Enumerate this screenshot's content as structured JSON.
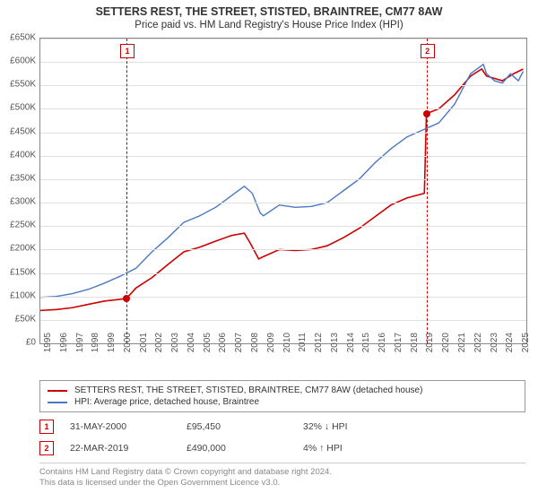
{
  "title": "SETTERS REST, THE STREET, STISTED, BRAINTREE, CM77 8AW",
  "subtitle": "Price paid vs. HM Land Registry's House Price Index (HPI)",
  "chart": {
    "type": "line",
    "background_color": "#ffffff",
    "grid_color": "#e0e0e0",
    "border_color": "#888888",
    "ylim": [
      0,
      650000
    ],
    "ytick_step": 50000,
    "yticks": [
      "£0",
      "£50K",
      "£100K",
      "£150K",
      "£200K",
      "£250K",
      "£300K",
      "£350K",
      "£400K",
      "£450K",
      "£500K",
      "£550K",
      "£600K",
      "£650K"
    ],
    "xlim": [
      1995,
      2025.5
    ],
    "xticks": [
      "1995",
      "1996",
      "1997",
      "1998",
      "1999",
      "2000",
      "2001",
      "2002",
      "2003",
      "2004",
      "2005",
      "2006",
      "2007",
      "2008",
      "2009",
      "2010",
      "2011",
      "2012",
      "2013",
      "2014",
      "2015",
      "2016",
      "2017",
      "2018",
      "2019",
      "2020",
      "2021",
      "2022",
      "2023",
      "2024",
      "2025"
    ],
    "series": [
      {
        "name": "property_price",
        "label": "SETTERS REST, THE STREET, STISTED, BRAINTREE, CM77 8AW (detached house)",
        "color": "#cc0000",
        "line_width": 1.6,
        "data": [
          [
            1995,
            70000
          ],
          [
            1996,
            72000
          ],
          [
            1997,
            76000
          ],
          [
            1998,
            83000
          ],
          [
            1999,
            90000
          ],
          [
            2000.4,
            95450
          ],
          [
            2001,
            118000
          ],
          [
            2002,
            140000
          ],
          [
            2003,
            168000
          ],
          [
            2004,
            195000
          ],
          [
            2005,
            205000
          ],
          [
            2006,
            218000
          ],
          [
            2007,
            230000
          ],
          [
            2007.8,
            235000
          ],
          [
            2008.2,
            212000
          ],
          [
            2008.7,
            180000
          ],
          [
            2009,
            185000
          ],
          [
            2010,
            200000
          ],
          [
            2011,
            198000
          ],
          [
            2012,
            200000
          ],
          [
            2013,
            208000
          ],
          [
            2014,
            225000
          ],
          [
            2015,
            245000
          ],
          [
            2016,
            270000
          ],
          [
            2017,
            295000
          ],
          [
            2018,
            310000
          ],
          [
            2019.1,
            320000
          ],
          [
            2019.23,
            490000
          ],
          [
            2020,
            500000
          ],
          [
            2021,
            530000
          ],
          [
            2022,
            570000
          ],
          [
            2022.7,
            585000
          ],
          [
            2023,
            570000
          ],
          [
            2024,
            560000
          ],
          [
            2024.7,
            575000
          ],
          [
            2025.3,
            585000
          ]
        ]
      },
      {
        "name": "hpi",
        "label": "HPI: Average price, detached house, Braintree",
        "color": "#4a78c4",
        "line_width": 1.4,
        "data": [
          [
            1995,
            98000
          ],
          [
            1996,
            100000
          ],
          [
            1997,
            106000
          ],
          [
            1998,
            115000
          ],
          [
            1999,
            128000
          ],
          [
            2000,
            143000
          ],
          [
            2001,
            160000
          ],
          [
            2002,
            195000
          ],
          [
            2003,
            225000
          ],
          [
            2004,
            258000
          ],
          [
            2005,
            272000
          ],
          [
            2006,
            290000
          ],
          [
            2007,
            315000
          ],
          [
            2007.8,
            335000
          ],
          [
            2008.3,
            320000
          ],
          [
            2008.8,
            278000
          ],
          [
            2009,
            272000
          ],
          [
            2010,
            295000
          ],
          [
            2011,
            290000
          ],
          [
            2012,
            292000
          ],
          [
            2013,
            300000
          ],
          [
            2014,
            325000
          ],
          [
            2015,
            350000
          ],
          [
            2016,
            385000
          ],
          [
            2017,
            415000
          ],
          [
            2018,
            440000
          ],
          [
            2019,
            455000
          ],
          [
            2020,
            470000
          ],
          [
            2021,
            510000
          ],
          [
            2022,
            575000
          ],
          [
            2022.8,
            595000
          ],
          [
            2023,
            575000
          ],
          [
            2023.5,
            560000
          ],
          [
            2024,
            555000
          ],
          [
            2024.5,
            575000
          ],
          [
            2025,
            560000
          ],
          [
            2025.3,
            580000
          ]
        ]
      }
    ],
    "markers": [
      {
        "n": "1",
        "x": 2000.4,
        "y": 95450
      },
      {
        "n": "2",
        "x": 2019.23,
        "y": 490000
      }
    ]
  },
  "legend": {
    "rows": [
      {
        "color": "#cc0000",
        "label": "SETTERS REST, THE STREET, STISTED, BRAINTREE, CM77 8AW (detached house)"
      },
      {
        "color": "#4a78c4",
        "label": "HPI: Average price, detached house, Braintree"
      }
    ]
  },
  "transactions": [
    {
      "n": "1",
      "date": "31-MAY-2000",
      "price": "£95,450",
      "diff": "32% ↓ HPI"
    },
    {
      "n": "2",
      "date": "22-MAR-2019",
      "price": "£490,000",
      "diff": "4% ↑ HPI"
    }
  ],
  "footer": {
    "l1": "Contains HM Land Registry data © Crown copyright and database right 2024.",
    "l2": "This data is licensed under the Open Government Licence v3.0."
  }
}
